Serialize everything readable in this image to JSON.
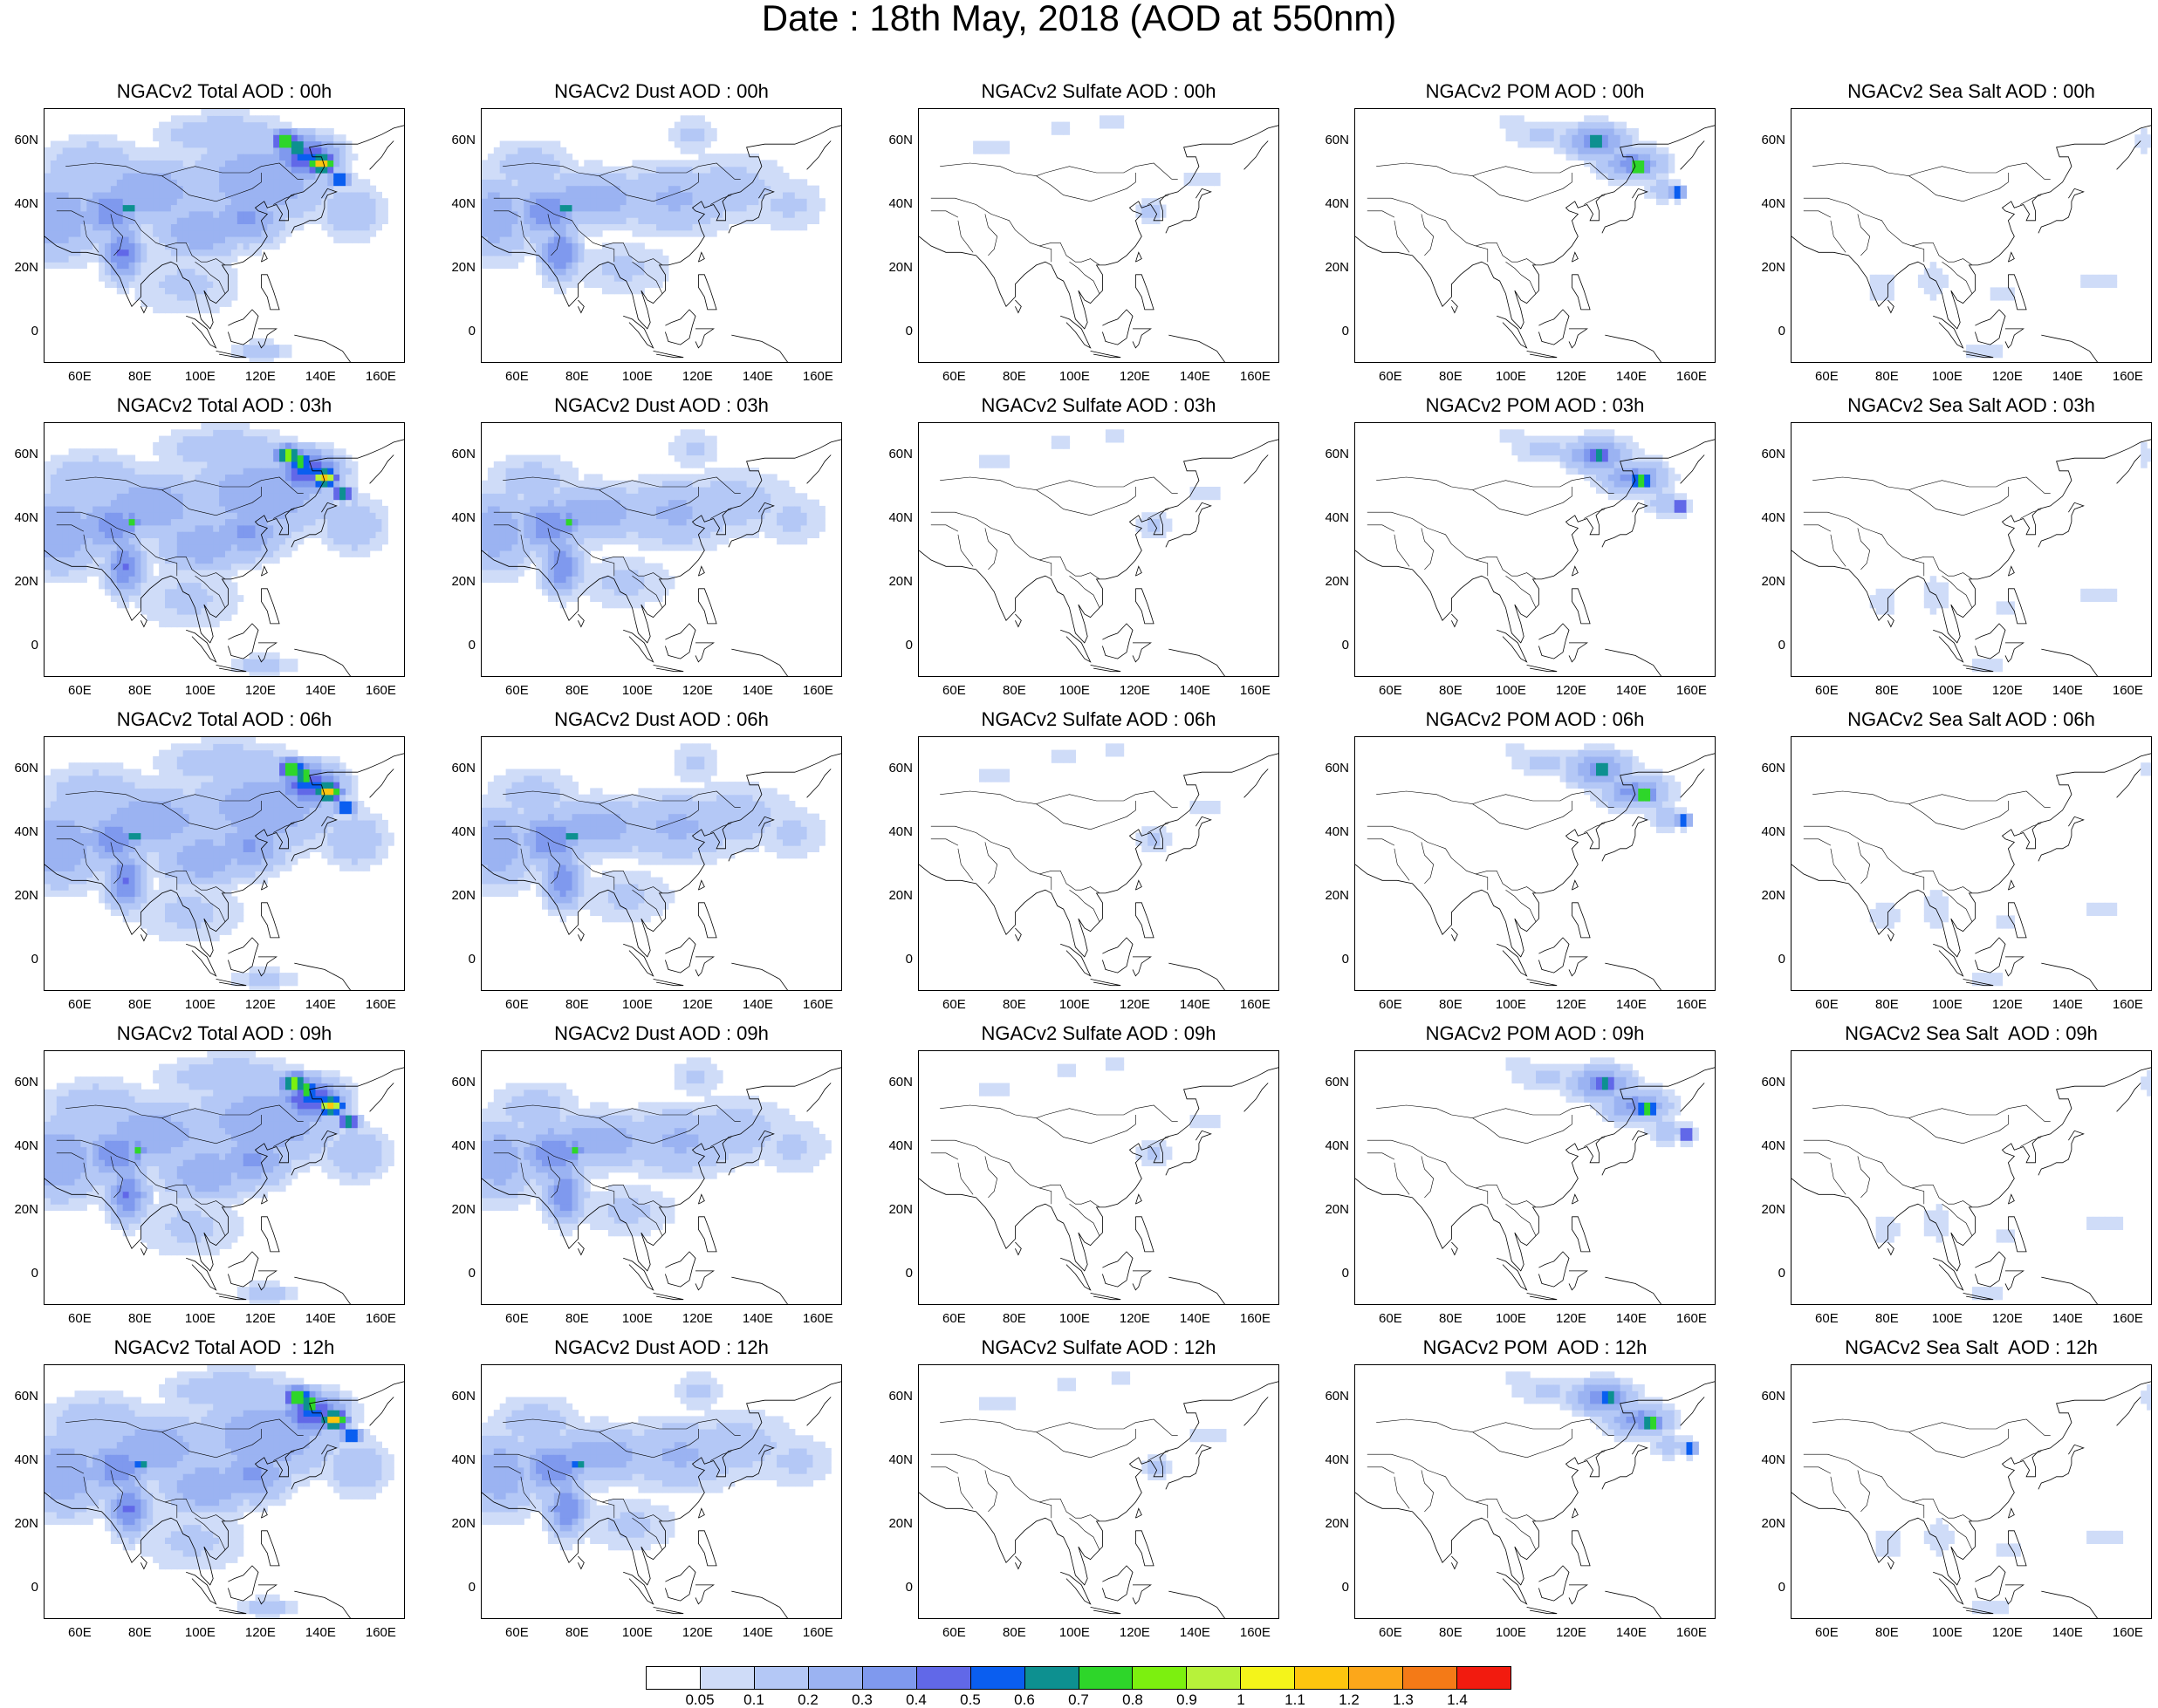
{
  "title": "Date : 18th May, 2018 (AOD at 550nm)",
  "x_ticks": [
    "60E",
    "80E",
    "100E",
    "120E",
    "140E",
    "160E"
  ],
  "y_ticks": [
    "60N",
    "40N",
    "20N",
    "0"
  ],
  "colorbar": {
    "colors": [
      "#ffffff",
      "#cfdcf8",
      "#b4c8f6",
      "#9bb3f2",
      "#7f99ee",
      "#6168e8",
      "#0a5ef0",
      "#0d9090",
      "#2ed62a",
      "#7cf00f",
      "#b7f23a",
      "#f4f41a",
      "#fdc50f",
      "#fca71a",
      "#f47a17",
      "#f21b0f"
    ],
    "labels": [
      "0.05",
      "0.1",
      "0.2",
      "0.3",
      "0.4",
      "0.5",
      "0.6",
      "0.7",
      "0.8",
      "0.9",
      "1",
      "1.1",
      "1.2",
      "1.3",
      "1.4"
    ]
  },
  "panels": [
    {
      "title": "NGACv2 Total AOD : 00h",
      "species": "total",
      "hour": 0
    },
    {
      "title": "NGACv2 Dust AOD : 00h",
      "species": "dust",
      "hour": 0
    },
    {
      "title": "NGACv2 Sulfate AOD : 00h",
      "species": "sulfate",
      "hour": 0
    },
    {
      "title": "NGACv2 POM AOD : 00h",
      "species": "pom",
      "hour": 0
    },
    {
      "title": "NGACv2 Sea Salt AOD : 00h",
      "species": "seasalt",
      "hour": 0
    },
    {
      "title": "NGACv2 Total AOD : 03h",
      "species": "total",
      "hour": 3
    },
    {
      "title": "NGACv2 Dust AOD : 03h",
      "species": "dust",
      "hour": 3
    },
    {
      "title": "NGACv2 Sulfate AOD : 03h",
      "species": "sulfate",
      "hour": 3
    },
    {
      "title": "NGACv2 POM AOD : 03h",
      "species": "pom",
      "hour": 3
    },
    {
      "title": "NGACv2 Sea Salt AOD : 03h",
      "species": "seasalt",
      "hour": 3
    },
    {
      "title": "NGACv2 Total AOD : 06h",
      "species": "total",
      "hour": 6
    },
    {
      "title": "NGACv2 Dust AOD : 06h",
      "species": "dust",
      "hour": 6
    },
    {
      "title": "NGACv2 Sulfate AOD : 06h",
      "species": "sulfate",
      "hour": 6
    },
    {
      "title": "NGACv2 POM AOD : 06h",
      "species": "pom",
      "hour": 6
    },
    {
      "title": "NGACv2 Sea Salt AOD : 06h",
      "species": "seasalt",
      "hour": 6
    },
    {
      "title": "NGACv2 Total AOD : 09h",
      "species": "total",
      "hour": 9
    },
    {
      "title": "NGACv2 Dust AOD : 09h",
      "species": "dust",
      "hour": 9
    },
    {
      "title": "NGACv2 Sulfate AOD : 09h",
      "species": "sulfate",
      "hour": 9
    },
    {
      "title": "NGACv2 POM AOD : 09h",
      "species": "pom",
      "hour": 9
    },
    {
      "title": "NGACv2 Sea Salt  AOD : 09h",
      "species": "seasalt",
      "hour": 9
    },
    {
      "title": "NGACv2 Total AOD  : 12h",
      "species": "total",
      "hour": 12
    },
    {
      "title": "NGACv2 Dust AOD : 12h",
      "species": "dust",
      "hour": 12
    },
    {
      "title": "NGACv2 Sulfate AOD : 12h",
      "species": "sulfate",
      "hour": 12
    },
    {
      "title": "NGACv2 POM  AOD : 12h",
      "species": "pom",
      "hour": 12
    },
    {
      "title": "NGACv2 Sea Salt  AOD : 12h",
      "species": "seasalt",
      "hour": 12
    }
  ]
}
